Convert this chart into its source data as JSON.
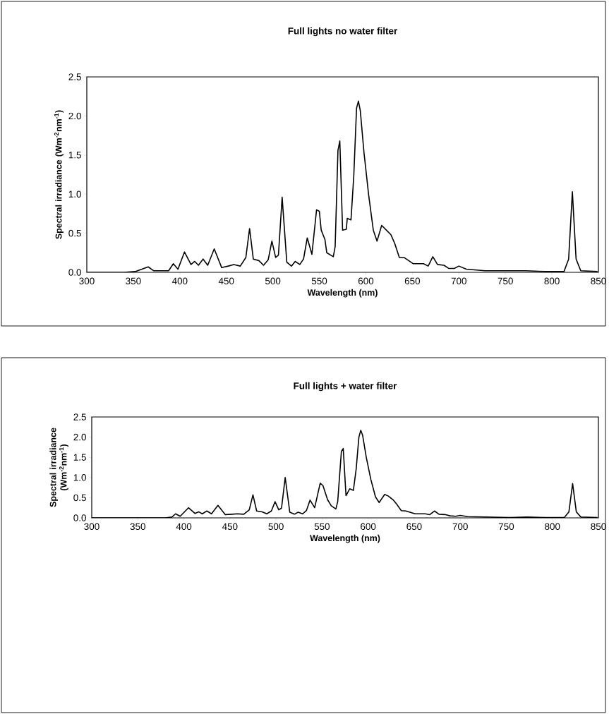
{
  "chart_data": [
    {
      "type": "line",
      "title": "Full lights no water filter",
      "xlabel": "Wavelength (nm)",
      "ylabel": "Spectral irradiance (Wm$^{-2}$nm$^{-1}$)",
      "xlim": [
        300,
        850
      ],
      "ylim": [
        0,
        2.5
      ],
      "xticks": [
        300,
        350,
        400,
        450,
        500,
        550,
        600,
        650,
        700,
        750,
        800,
        850
      ],
      "yticks": [
        {
          "value": 0,
          "label": "0.0"
        },
        {
          "value": 0.5,
          "label": "0.5"
        },
        {
          "value": 1,
          "label": "1.0"
        },
        {
          "value": 1.5,
          "label": "1.5"
        },
        {
          "value": 2,
          "label": "2.0"
        },
        {
          "value": 2.5,
          "label": "2.5"
        }
      ],
      "x": [
        300,
        340,
        352,
        366,
        372,
        388,
        393,
        398,
        405,
        412,
        416,
        420,
        425,
        430,
        437,
        445,
        452,
        458,
        465,
        471,
        475,
        479,
        485,
        490,
        495,
        499,
        503,
        506,
        510,
        515,
        520,
        524,
        529,
        533,
        537,
        542,
        547,
        550,
        552,
        556,
        558,
        565,
        567,
        570,
        572,
        575,
        579,
        580,
        584,
        587,
        590,
        592,
        594,
        598,
        603,
        608,
        612,
        617,
        622,
        627,
        631,
        636,
        641,
        651,
        662,
        667,
        672,
        677,
        684,
        689,
        695,
        700,
        708,
        728,
        754,
        772,
        793,
        813,
        818,
        822,
        826,
        831,
        849
      ],
      "series": [
        {
          "color": "#000000",
          "values": [
            0,
            0,
            0.01,
            0.07,
            0.02,
            0.02,
            0.11,
            0.04,
            0.26,
            0.1,
            0.14,
            0.09,
            0.17,
            0.09,
            0.3,
            0.06,
            0.08,
            0.1,
            0.08,
            0.19,
            0.56,
            0.17,
            0.15,
            0.09,
            0.16,
            0.4,
            0.19,
            0.22,
            0.96,
            0.13,
            0.08,
            0.14,
            0.1,
            0.17,
            0.44,
            0.23,
            0.8,
            0.78,
            0.54,
            0.42,
            0.25,
            0.2,
            0.33,
            1.56,
            1.68,
            0.54,
            0.55,
            0.69,
            0.67,
            1.23,
            2.1,
            2.19,
            2.07,
            1.53,
            0.99,
            0.54,
            0.4,
            0.6,
            0.54,
            0.48,
            0.37,
            0.19,
            0.19,
            0.11,
            0.11,
            0.08,
            0.2,
            0.1,
            0.09,
            0.05,
            0.05,
            0.08,
            0.04,
            0.02,
            0.02,
            0.02,
            0.01,
            0.01,
            0.17,
            1.03,
            0.17,
            0.02,
            0.01
          ]
        }
      ]
    },
    {
      "type": "line",
      "title": "Full lights + water filter",
      "xlabel": "Wavelength (nm)",
      "ylabel": "Spectral irradiance (Wm$^{-2}$nm$^{-1}$)",
      "xlim": [
        300,
        850
      ],
      "ylim": [
        0,
        2.5
      ],
      "xticks": [
        300,
        350,
        400,
        450,
        500,
        550,
        600,
        650,
        700,
        750,
        800,
        850
      ],
      "yticks": [
        {
          "value": 0,
          "label": "0.0"
        },
        {
          "value": 0.5,
          "label": "0.5"
        },
        {
          "value": 1,
          "label": "1.0"
        },
        {
          "value": 1.5,
          "label": "1.5"
        },
        {
          "value": 2,
          "label": "2.0"
        },
        {
          "value": 2.5,
          "label": "2.5"
        }
      ],
      "x": [
        300,
        380,
        387,
        391,
        396,
        405,
        412,
        416,
        420,
        425,
        430,
        437,
        445,
        452,
        458,
        465,
        471,
        475,
        479,
        485,
        490,
        495,
        499,
        503,
        506,
        510,
        515,
        520,
        524,
        529,
        533,
        537,
        542,
        548,
        551,
        556,
        560,
        565,
        567,
        571,
        573,
        576,
        580,
        584,
        587,
        590,
        592,
        594,
        598,
        603,
        608,
        612,
        618,
        622,
        627,
        631,
        636,
        641,
        651,
        662,
        667,
        672,
        677,
        684,
        689,
        695,
        700,
        708,
        728,
        754,
        772,
        793,
        813,
        818,
        822,
        826,
        831,
        849
      ],
      "series": [
        {
          "color": "#000000",
          "values": [
            0,
            0,
            0.02,
            0.1,
            0.04,
            0.25,
            0.11,
            0.15,
            0.1,
            0.17,
            0.1,
            0.31,
            0.08,
            0.09,
            0.1,
            0.09,
            0.2,
            0.57,
            0.17,
            0.15,
            0.1,
            0.17,
            0.4,
            0.2,
            0.24,
            1.0,
            0.14,
            0.09,
            0.14,
            0.1,
            0.18,
            0.44,
            0.25,
            0.86,
            0.8,
            0.45,
            0.3,
            0.22,
            0.4,
            1.65,
            1.72,
            0.55,
            0.72,
            0.68,
            1.2,
            2.0,
            2.17,
            2.05,
            1.5,
            0.95,
            0.52,
            0.38,
            0.58,
            0.54,
            0.45,
            0.34,
            0.18,
            0.17,
            0.1,
            0.1,
            0.08,
            0.17,
            0.09,
            0.08,
            0.05,
            0.04,
            0.06,
            0.03,
            0.02,
            0.01,
            0.02,
            0.01,
            0.01,
            0.15,
            0.85,
            0.15,
            0.02,
            0.01
          ]
        }
      ]
    }
  ]
}
